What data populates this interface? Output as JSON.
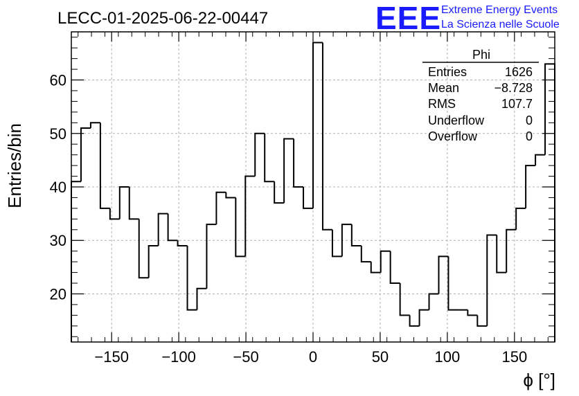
{
  "chart_data": {
    "type": "histogram",
    "title": "LECC-01-2025-06-22-00447",
    "xlabel": "ϕ [°]",
    "ylabel": "Entries/bin",
    "xlim": [
      -180,
      180
    ],
    "ylim": [
      11,
      69
    ],
    "x_ticks": [
      -150,
      -100,
      -50,
      0,
      50,
      100,
      150
    ],
    "x_tick_labels": [
      "−150",
      "−100",
      "−50",
      "0",
      "50",
      "100",
      "150"
    ],
    "y_ticks": [
      20,
      30,
      40,
      50,
      60
    ],
    "y_tick_labels": [
      "20",
      "30",
      "40",
      "50",
      "60"
    ],
    "grid": true,
    "bin_width": 7.2,
    "counts": [
      41,
      51,
      52,
      36,
      34,
      40,
      34,
      23,
      29,
      35,
      30,
      29,
      17,
      21,
      33,
      39,
      38,
      27,
      42,
      50,
      41,
      37,
      49,
      40,
      36,
      67,
      32,
      27,
      33,
      29,
      26,
      24,
      28,
      22,
      16,
      14,
      17,
      20,
      27,
      17,
      17,
      16,
      14,
      31,
      24,
      32,
      36,
      44,
      46,
      63
    ],
    "stats_box": {
      "title": "Phi",
      "rows": [
        {
          "label": "Entries",
          "value": "1626"
        },
        {
          "label": "Mean",
          "value": "−8.728"
        },
        {
          "label": "RMS",
          "value": "107.7"
        },
        {
          "label": "Underflow",
          "value": "0"
        },
        {
          "label": "Overflow",
          "value": "0"
        }
      ]
    },
    "colors": {
      "line": "#000000",
      "grid": "#b0b0b0",
      "logo": "#1a1aff"
    }
  },
  "logo": {
    "mark": "EEE",
    "line1": "Extreme Energy Events",
    "line2": "La Scienza nelle Scuole"
  }
}
